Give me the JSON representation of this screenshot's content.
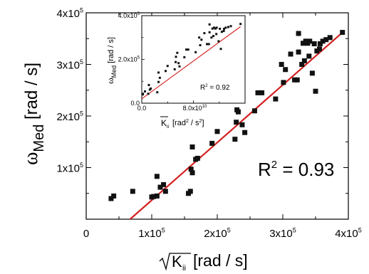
{
  "chart_data": [
    {
      "type": "scatter",
      "xlabel": "√K_ii [rad / s]",
      "ylabel": "ω_Med [rad / s]",
      "x_unit": "[rad / s]",
      "y_unit": "[rad / s]",
      "xlim": [
        0,
        400000
      ],
      "ylim": [
        0,
        400000
      ],
      "x_tick_labels": [
        "0",
        "1x10^5",
        "2x10^5",
        "3x10^5",
        "4x10^5"
      ],
      "y_tick_labels": [
        "1x10^5",
        "2x10^5",
        "3x10^5",
        "4x10^5"
      ],
      "annotation": "R^2 = 0.93",
      "marker": "square",
      "marker_color": "#111111",
      "fit_line_color": "#d42020",
      "fit_line": {
        "x": [
          67000,
          392000
        ],
        "y": [
          0,
          363000
        ]
      },
      "points": [
        [
          38000,
          40000
        ],
        [
          42000,
          45000
        ],
        [
          71000,
          54000
        ],
        [
          100000,
          43000
        ],
        [
          103000,
          44000
        ],
        [
          108000,
          45000
        ],
        [
          108000,
          83000
        ],
        [
          113000,
          62000
        ],
        [
          118000,
          67000
        ],
        [
          121000,
          54000
        ],
        [
          156000,
          50000
        ],
        [
          159000,
          54000
        ],
        [
          160000,
          97000
        ],
        [
          162000,
          90000
        ],
        [
          162000,
          140000
        ],
        [
          167000,
          116000
        ],
        [
          170000,
          118000
        ],
        [
          192000,
          147000
        ],
        [
          200000,
          170000
        ],
        [
          227000,
          155000
        ],
        [
          229000,
          188000
        ],
        [
          230000,
          212000
        ],
        [
          232000,
          208000
        ],
        [
          234000,
          230000
        ],
        [
          238000,
          183000
        ],
        [
          242000,
          168000
        ],
        [
          257000,
          210000
        ],
        [
          262000,
          245000
        ],
        [
          268000,
          245000
        ],
        [
          289000,
          233000
        ],
        [
          298000,
          300000
        ],
        [
          301000,
          265000
        ],
        [
          304000,
          290000
        ],
        [
          312000,
          320000
        ],
        [
          318000,
          270000
        ],
        [
          322000,
          270000
        ],
        [
          324000,
          324000
        ],
        [
          324000,
          360000
        ],
        [
          329000,
          300000
        ],
        [
          331000,
          341000
        ],
        [
          333000,
          307000
        ],
        [
          335000,
          345000
        ],
        [
          338000,
          341000
        ],
        [
          340000,
          316000
        ],
        [
          341000,
          345000
        ],
        [
          345000,
          283000
        ],
        [
          348000,
          340000
        ],
        [
          350000,
          248000
        ],
        [
          352000,
          326000
        ],
        [
          356000,
          330000
        ],
        [
          357000,
          340000
        ],
        [
          361000,
          345000
        ],
        [
          366000,
          348000
        ],
        [
          372000,
          352000
        ],
        [
          391000,
          362000
        ]
      ]
    },
    {
      "type": "scatter",
      "role": "inset",
      "xlabel": "K_ii [rad^2 / s^2]",
      "ylabel": "ω_Med [rad / s]",
      "x_unit": "[rad^2 / s^2]",
      "y_unit": "[rad / s]",
      "xlim": [
        0,
        160000000000
      ],
      "ylim": [
        0,
        400000
      ],
      "x_tick_labels": [
        "0.0",
        "8.0x10^10"
      ],
      "y_tick_labels": [
        "0.0",
        "2.0x10^5",
        "4.0x10^5"
      ],
      "annotation": "R^2 = 0.92",
      "marker": "square",
      "marker_color": "#111111",
      "fit_line_color": "#d42020",
      "fit_line": {
        "x": [
          0,
          153000000000
        ],
        "y": [
          20000,
          350000
        ]
      },
      "points": [
        [
          1500000000,
          40000
        ],
        [
          1800000000,
          43000
        ],
        [
          5000000000,
          54000
        ],
        [
          10000000000,
          43000
        ],
        [
          11000000000,
          83000
        ],
        [
          12500000000,
          62000
        ],
        [
          14000000000,
          67000
        ],
        [
          24000000000,
          50000
        ],
        [
          26000000000,
          97000
        ],
        [
          26000000000,
          140000
        ],
        [
          28000000000,
          116000
        ],
        [
          37000000000,
          147000
        ],
        [
          40000000000,
          170000
        ],
        [
          51000000000,
          155000
        ],
        [
          52500000000,
          188000
        ],
        [
          53000000000,
          212000
        ],
        [
          55000000000,
          230000
        ],
        [
          57000000000,
          183000
        ],
        [
          58500000000,
          168000
        ],
        [
          66000000000,
          210000
        ],
        [
          69000000000,
          245000
        ],
        [
          72000000000,
          245000
        ],
        [
          83500000000,
          233000
        ],
        [
          89000000000,
          300000
        ],
        [
          90500000000,
          265000
        ],
        [
          92500000000,
          290000
        ],
        [
          97000000000,
          320000
        ],
        [
          101000000000,
          270000
        ],
        [
          104000000000,
          270000
        ],
        [
          105000000000,
          324000
        ],
        [
          105000000000,
          360000
        ],
        [
          108000000000,
          300000
        ],
        [
          109500000000,
          341000
        ],
        [
          111000000000,
          307000
        ],
        [
          112000000000,
          345000
        ],
        [
          114000000000,
          341000
        ],
        [
          115500000000,
          316000
        ],
        [
          116000000000,
          345000
        ],
        [
          119000000000,
          283000
        ],
        [
          121000000000,
          340000
        ],
        [
          122500000000,
          248000
        ],
        [
          124000000000,
          326000
        ],
        [
          127000000000,
          330000
        ],
        [
          127500000000,
          340000
        ],
        [
          130000000000,
          345000
        ],
        [
          134000000000,
          348000
        ],
        [
          138000000000,
          352000
        ],
        [
          153000000000,
          362000
        ]
      ]
    }
  ]
}
